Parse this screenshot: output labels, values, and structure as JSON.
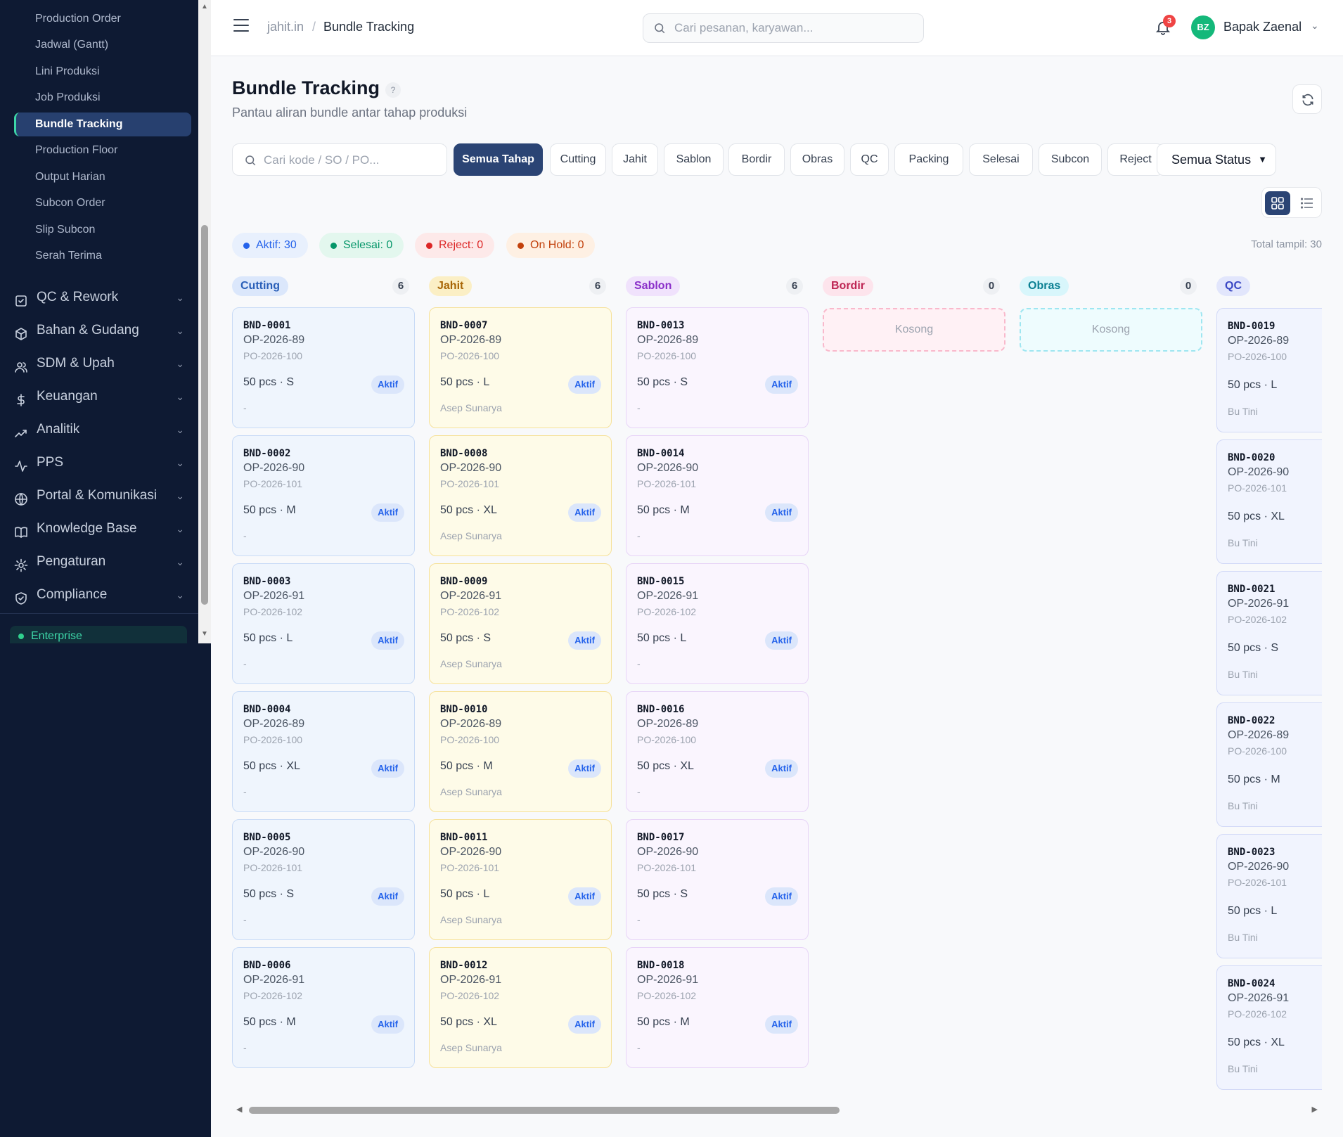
{
  "sidebar": {
    "sub_items": [
      {
        "label": "Production Order",
        "active": false
      },
      {
        "label": "Jadwal (Gantt)",
        "active": false
      },
      {
        "label": "Lini Produksi",
        "active": false
      },
      {
        "label": "Job Produksi",
        "active": false
      },
      {
        "label": "Bundle Tracking",
        "active": true
      },
      {
        "label": "Production Floor",
        "active": false
      },
      {
        "label": "Output Harian",
        "active": false
      },
      {
        "label": "Subcon Order",
        "active": false
      },
      {
        "label": "Slip Subcon",
        "active": false
      },
      {
        "label": "Serah Terima",
        "active": false
      }
    ],
    "groups": [
      {
        "label": "QC & Rework",
        "icon": "checkbox-icon"
      },
      {
        "label": "Bahan & Gudang",
        "icon": "box-icon"
      },
      {
        "label": "SDM & Upah",
        "icon": "users-icon"
      },
      {
        "label": "Keuangan",
        "icon": "dollar-icon"
      },
      {
        "label": "Analitik",
        "icon": "trending-up-icon"
      },
      {
        "label": "PPS",
        "icon": "activity-icon"
      },
      {
        "label": "Portal & Komunikasi",
        "icon": "globe-icon"
      },
      {
        "label": "Knowledge Base",
        "icon": "book-icon"
      },
      {
        "label": "Pengaturan",
        "icon": "gear-icon"
      },
      {
        "label": "Compliance",
        "icon": "shield-icon"
      }
    ],
    "plan": "Enterprise"
  },
  "header": {
    "breadcrumb_root": "jahit.in",
    "breadcrumb_sep": "/",
    "breadcrumb_current": "Bundle Tracking",
    "search_placeholder": "Cari pesanan, karyawan...",
    "notif_count": "3",
    "avatar_initials": "BZ",
    "user_name": "Bapak Zaenal"
  },
  "page": {
    "title": "Bundle Tracking",
    "help": "?",
    "subtitle": "Pantau aliran bundle antar tahap produksi"
  },
  "filters": {
    "search_placeholder": "Cari kode / SO / PO...",
    "stages": [
      "Semua Tahap",
      "Cutting",
      "Jahit",
      "Sablon",
      "Bordir",
      "Obras",
      "QC",
      "Packing",
      "Selesai",
      "Subcon",
      "Reject"
    ],
    "active_stage": "Semua Tahap",
    "status_select": "Semua Status"
  },
  "summary": {
    "pills": [
      {
        "label": "Aktif: 30",
        "color": "#2563eb"
      },
      {
        "label": "Selesai: 0",
        "color": "#059669"
      },
      {
        "label": "Reject: 0",
        "color": "#dc2626"
      },
      {
        "label": "On Hold: 0",
        "color": "#c2410c"
      }
    ],
    "total": "Total tampil: 30"
  },
  "colors": {
    "sidebar_bg": "#0e1a33",
    "accent": "#2b4474",
    "active_teal": "#3dd6a8",
    "cutting_bg": "#eff5fd",
    "jahit_bg": "#fefbe8",
    "sablon_bg": "#faf5fe"
  },
  "board": {
    "status_label": "Aktif",
    "empty_label": "Kosong",
    "columns": [
      {
        "name": "Cutting",
        "count": "6",
        "cards": [
          {
            "code": "BND-0001",
            "op": "OP-2026-89",
            "po": "PO-2026-100",
            "qty": "50 pcs · S",
            "operator": "-"
          },
          {
            "code": "BND-0002",
            "op": "OP-2026-90",
            "po": "PO-2026-101",
            "qty": "50 pcs · M",
            "operator": "-"
          },
          {
            "code": "BND-0003",
            "op": "OP-2026-91",
            "po": "PO-2026-102",
            "qty": "50 pcs · L",
            "operator": "-"
          },
          {
            "code": "BND-0004",
            "op": "OP-2026-89",
            "po": "PO-2026-100",
            "qty": "50 pcs · XL",
            "operator": "-"
          },
          {
            "code": "BND-0005",
            "op": "OP-2026-90",
            "po": "PO-2026-101",
            "qty": "50 pcs · S",
            "operator": "-"
          },
          {
            "code": "BND-0006",
            "op": "OP-2026-91",
            "po": "PO-2026-102",
            "qty": "50 pcs · M",
            "operator": "-"
          }
        ]
      },
      {
        "name": "Jahit",
        "count": "6",
        "cards": [
          {
            "code": "BND-0007",
            "op": "OP-2026-89",
            "po": "PO-2026-100",
            "qty": "50 pcs · L",
            "operator": "Asep Sunarya"
          },
          {
            "code": "BND-0008",
            "op": "OP-2026-90",
            "po": "PO-2026-101",
            "qty": "50 pcs · XL",
            "operator": "Asep Sunarya"
          },
          {
            "code": "BND-0009",
            "op": "OP-2026-91",
            "po": "PO-2026-102",
            "qty": "50 pcs · S",
            "operator": "Asep Sunarya"
          },
          {
            "code": "BND-0010",
            "op": "OP-2026-89",
            "po": "PO-2026-100",
            "qty": "50 pcs · M",
            "operator": "Asep Sunarya"
          },
          {
            "code": "BND-0011",
            "op": "OP-2026-90",
            "po": "PO-2026-101",
            "qty": "50 pcs · L",
            "operator": "Asep Sunarya"
          },
          {
            "code": "BND-0012",
            "op": "OP-2026-91",
            "po": "PO-2026-102",
            "qty": "50 pcs · XL",
            "operator": "Asep Sunarya"
          }
        ]
      },
      {
        "name": "Sablon",
        "count": "6",
        "cards": [
          {
            "code": "BND-0013",
            "op": "OP-2026-89",
            "po": "PO-2026-100",
            "qty": "50 pcs · S",
            "operator": "-"
          },
          {
            "code": "BND-0014",
            "op": "OP-2026-90",
            "po": "PO-2026-101",
            "qty": "50 pcs · M",
            "operator": "-"
          },
          {
            "code": "BND-0015",
            "op": "OP-2026-91",
            "po": "PO-2026-102",
            "qty": "50 pcs · L",
            "operator": "-"
          },
          {
            "code": "BND-0016",
            "op": "OP-2026-89",
            "po": "PO-2026-100",
            "qty": "50 pcs · XL",
            "operator": "-"
          },
          {
            "code": "BND-0017",
            "op": "OP-2026-90",
            "po": "PO-2026-101",
            "qty": "50 pcs · S",
            "operator": "-"
          },
          {
            "code": "BND-0018",
            "op": "OP-2026-91",
            "po": "PO-2026-102",
            "qty": "50 pcs · M",
            "operator": "-"
          }
        ]
      },
      {
        "name": "Bordir",
        "count": "0",
        "cards": []
      },
      {
        "name": "Obras",
        "count": "0",
        "cards": []
      },
      {
        "name": "QC",
        "count": "",
        "cards": [
          {
            "code": "BND-0019",
            "op": "OP-2026-89",
            "po": "PO-2026-100",
            "qty": "50 pcs · L",
            "operator": "Bu Tini"
          },
          {
            "code": "BND-0020",
            "op": "OP-2026-90",
            "po": "PO-2026-101",
            "qty": "50 pcs · XL",
            "operator": "Bu Tini"
          },
          {
            "code": "BND-0021",
            "op": "OP-2026-91",
            "po": "PO-2026-102",
            "qty": "50 pcs · S",
            "operator": "Bu Tini"
          },
          {
            "code": "BND-0022",
            "op": "OP-2026-89",
            "po": "PO-2026-100",
            "qty": "50 pcs · M",
            "operator": "Bu Tini"
          },
          {
            "code": "BND-0023",
            "op": "OP-2026-90",
            "po": "PO-2026-101",
            "qty": "50 pcs · L",
            "operator": "Bu Tini"
          },
          {
            "code": "BND-0024",
            "op": "OP-2026-91",
            "po": "PO-2026-102",
            "qty": "50 pcs · XL",
            "operator": "Bu Tini"
          }
        ]
      }
    ]
  }
}
